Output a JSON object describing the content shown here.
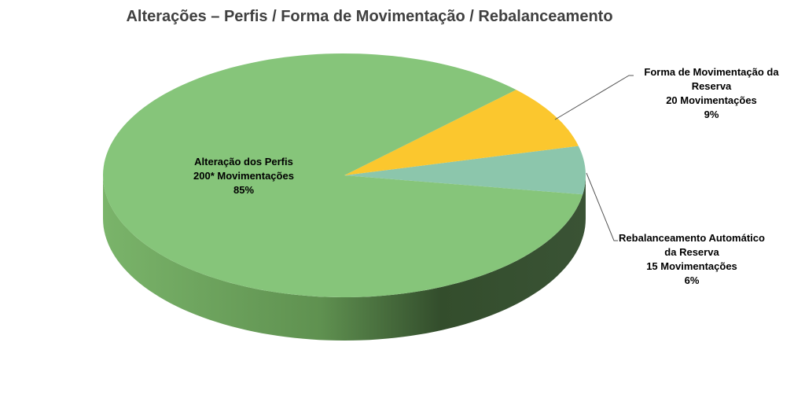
{
  "chart_data": {
    "type": "pie",
    "style": "3d",
    "title": "Alterações – Perfis / Forma de Movimentação / Rebalanceamento",
    "slices": [
      {
        "name_line1": "Alteração dos Perfis",
        "name_line2": "",
        "value": 200,
        "value_label": "200* Movimentações",
        "percent_label": "85%",
        "color": "#86c57a"
      },
      {
        "name_line1": "Forma de Movimentação da",
        "name_line2": "Reserva",
        "value": 20,
        "value_label": "20 Movimentações",
        "percent_label": "9%",
        "color": "#fbc72e"
      },
      {
        "name_line1": "Rebalanceamento Automático",
        "name_line2": "da Reserva",
        "value": 15,
        "value_label": "15 Movimentações",
        "percent_label": "6%",
        "color": "#8cc6ac"
      }
    ],
    "side_colors": [
      "#7ab46a",
      "#5f9150",
      "#334d2c"
    ]
  }
}
